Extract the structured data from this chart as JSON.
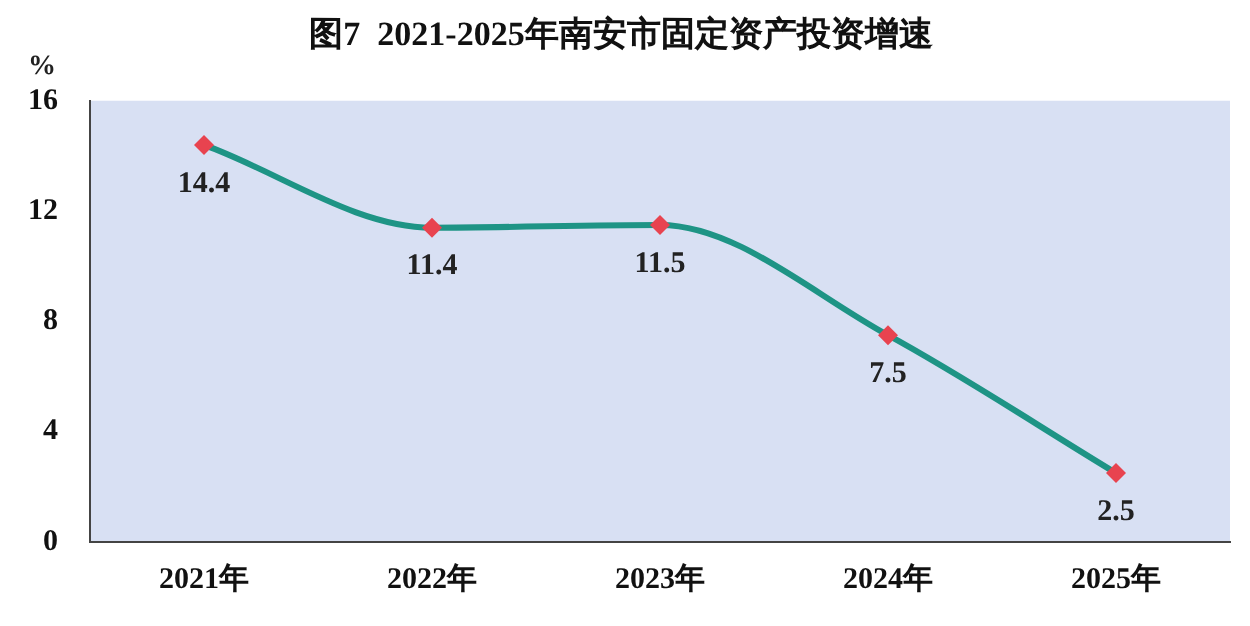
{
  "chart_data": {
    "type": "line",
    "title": "图7  2021-2025年南安市固定资产投资增速",
    "ylabel": "%",
    "categories": [
      "2021年",
      "2022年",
      "2023年",
      "2024年",
      "2025年"
    ],
    "series": [
      {
        "color": "#1e9485",
        "colors": [
          "#e8434f",
          "#e8434f",
          "#e8434f",
          "#e8434f",
          "#e8434f"
        ],
        "values": [
          14.4,
          11.4,
          11.5,
          7.5,
          2.5
        ]
      }
    ],
    "ylim": [
      0,
      16
    ],
    "yticks": [
      0,
      4,
      8,
      12,
      16
    ],
    "grid": false,
    "legend": false,
    "marker": "diamond",
    "line_style": "solid",
    "data_labels": true
  }
}
